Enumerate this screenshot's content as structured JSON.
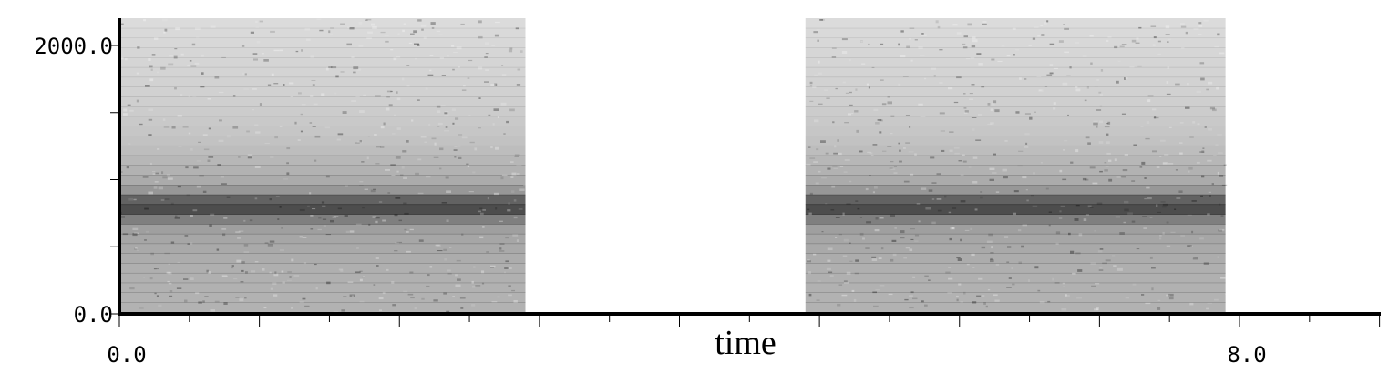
{
  "chart_data": {
    "type": "heatmap",
    "title": "",
    "xlabel": "time",
    "ylabel": "",
    "xlim": [
      0.0,
      9.0
    ],
    "ylim": [
      0.0,
      2200.0
    ],
    "x_tick_labels": [
      {
        "value": 0.0,
        "label": "0.0"
      },
      {
        "value": 8.0,
        "label": "8.0"
      }
    ],
    "y_tick_labels": [
      {
        "value": 0.0,
        "label": "0.0"
      },
      {
        "value": 2000.0,
        "label": "2000.0"
      }
    ],
    "x_minor_tick_step": 0.5,
    "y_minor_tick_step": 500.0,
    "colormap": "white-to-black",
    "noise_segments": [
      {
        "t_start": 0.0,
        "t_end": 2.9,
        "f_min": 0.0,
        "f_max": 2200.0,
        "peak_frequency": 800.0
      },
      {
        "t_start": 4.9,
        "t_end": 7.9,
        "f_min": 0.0,
        "f_max": 2200.0,
        "peak_frequency": 800.0
      }
    ],
    "grid": false
  }
}
